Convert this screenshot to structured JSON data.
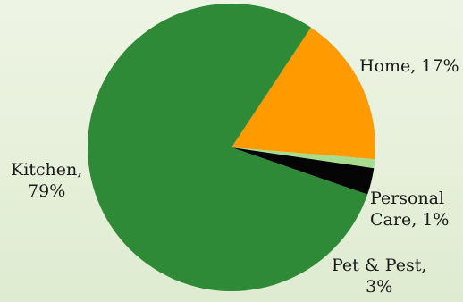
{
  "chart_data": {
    "type": "pie",
    "title": "",
    "slices": [
      {
        "label": "Home",
        "value": 17,
        "value_text": "17%",
        "color": "#ff9a00"
      },
      {
        "label": "Personal Care",
        "value": 1,
        "value_text": "1%",
        "color": "#a6dd8f"
      },
      {
        "label": "Pet & Pest",
        "value": 3,
        "value_text": "3%",
        "color": "#050505"
      },
      {
        "label": "Kitchen",
        "value": 79,
        "value_text": "79%",
        "color": "#2f8a38"
      }
    ],
    "labels": {
      "home": "Home, 17%",
      "personal_care_line1": "Personal",
      "personal_care_line2": "Care, 1%",
      "pet_line1": "Pet & Pest,",
      "pet_line2": "3%",
      "kitchen_line1": "Kitchen,",
      "kitchen_line2": "79%"
    },
    "legend": "none",
    "grid": false
  }
}
